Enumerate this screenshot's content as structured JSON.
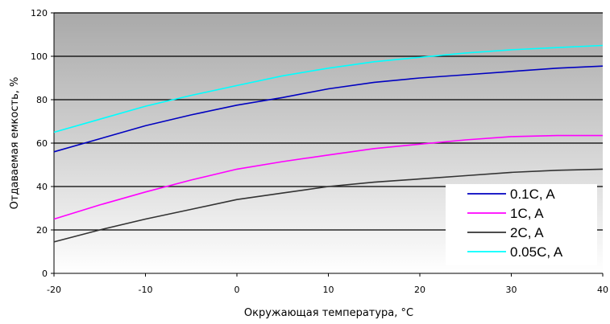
{
  "chart_data": {
    "type": "line",
    "xlabel": "Окружающая температура, °C",
    "ylabel": "Отдаваемая емкость, %",
    "xlim": [
      -20,
      40
    ],
    "ylim": [
      0,
      120
    ],
    "x_ticks": [
      "-20",
      "-10",
      "0",
      "10",
      "20",
      "30",
      "40"
    ],
    "y_ticks": [
      "0",
      "20",
      "40",
      "60",
      "80",
      "100",
      "120"
    ],
    "grid": true,
    "legend_position": "lower-right",
    "series": [
      {
        "name": "0.1C, A",
        "color": "#0000c0",
        "x": [
          -20,
          -15,
          -10,
          -5,
          0,
          5,
          10,
          15,
          20,
          25,
          30,
          35,
          40
        ],
        "y": [
          56,
          62,
          68,
          73,
          77.5,
          81,
          85,
          88,
          90,
          91.5,
          93,
          94.5,
          95.5
        ]
      },
      {
        "name": "1C, A",
        "color": "#ff00ff",
        "x": [
          -20,
          -15,
          -10,
          -5,
          0,
          5,
          10,
          15,
          20,
          25,
          30,
          35,
          40
        ],
        "y": [
          25,
          31.5,
          37.5,
          43,
          48,
          51.5,
          54.5,
          57.5,
          59.5,
          61.5,
          63,
          63.5,
          63.5
        ]
      },
      {
        "name": "2C, A",
        "color": "#333333",
        "x": [
          -20,
          -15,
          -10,
          -5,
          0,
          5,
          10,
          15,
          20,
          25,
          30,
          35,
          40
        ],
        "y": [
          14.5,
          20,
          25,
          29.5,
          34,
          37,
          40,
          42,
          43.5,
          45,
          46.5,
          47.5,
          48
        ]
      },
      {
        "name": "0.05C, A",
        "color": "#00ffff",
        "x": [
          -20,
          -15,
          -10,
          -5,
          0,
          5,
          10,
          15,
          20,
          25,
          30,
          35,
          40
        ],
        "y": [
          65,
          71,
          77,
          82,
          86.5,
          91,
          94.5,
          97.5,
          99.5,
          101.5,
          103,
          104,
          105
        ]
      }
    ]
  }
}
